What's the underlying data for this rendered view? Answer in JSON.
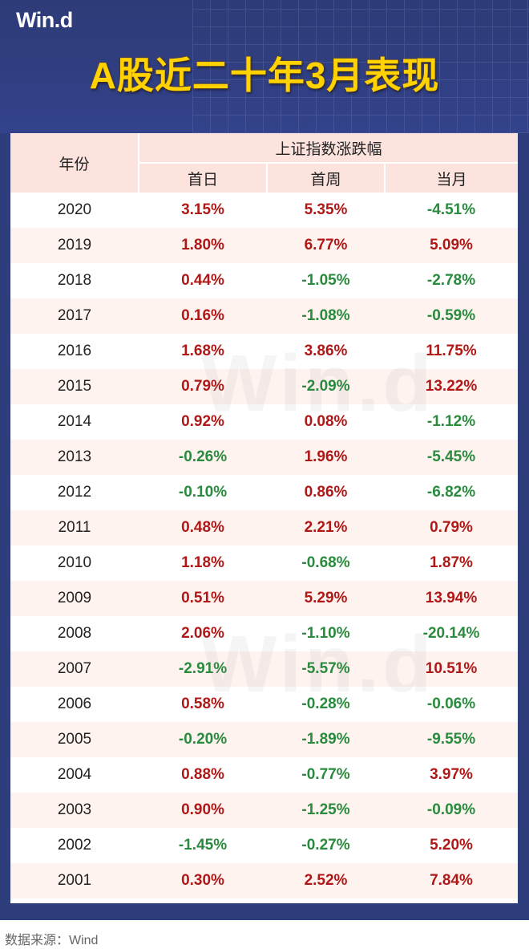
{
  "header": {
    "logo": "Win.d",
    "title": "A股近二十年3月表现"
  },
  "table": {
    "col_year": "年份",
    "group": "上证指数涨跌幅",
    "cols": [
      "首日",
      "首周",
      "当月"
    ],
    "rows": [
      {
        "year": "2020",
        "values": [
          "3.15%",
          "5.35%",
          "-4.51%"
        ]
      },
      {
        "year": "2019",
        "values": [
          "1.80%",
          "6.77%",
          "5.09%"
        ]
      },
      {
        "year": "2018",
        "values": [
          "0.44%",
          "-1.05%",
          "-2.78%"
        ]
      },
      {
        "year": "2017",
        "values": [
          "0.16%",
          "-1.08%",
          "-0.59%"
        ]
      },
      {
        "year": "2016",
        "values": [
          "1.68%",
          "3.86%",
          "11.75%"
        ]
      },
      {
        "year": "2015",
        "values": [
          "0.79%",
          "-2.09%",
          "13.22%"
        ]
      },
      {
        "year": "2014",
        "values": [
          "0.92%",
          "0.08%",
          "-1.12%"
        ]
      },
      {
        "year": "2013",
        "values": [
          "-0.26%",
          "1.96%",
          "-5.45%"
        ]
      },
      {
        "year": "2012",
        "values": [
          "-0.10%",
          "0.86%",
          "-6.82%"
        ]
      },
      {
        "year": "2011",
        "values": [
          "0.48%",
          "2.21%",
          "0.79%"
        ]
      },
      {
        "year": "2010",
        "values": [
          "1.18%",
          "-0.68%",
          "1.87%"
        ]
      },
      {
        "year": "2009",
        "values": [
          "0.51%",
          "5.29%",
          "13.94%"
        ]
      },
      {
        "year": "2008",
        "values": [
          "2.06%",
          "-1.10%",
          "-20.14%"
        ]
      },
      {
        "year": "2007",
        "values": [
          "-2.91%",
          "-5.57%",
          "10.51%"
        ]
      },
      {
        "year": "2006",
        "values": [
          "0.58%",
          "-0.28%",
          "-0.06%"
        ]
      },
      {
        "year": "2005",
        "values": [
          "-0.20%",
          "-1.89%",
          "-9.55%"
        ]
      },
      {
        "year": "2004",
        "values": [
          "0.88%",
          "-0.77%",
          "3.97%"
        ]
      },
      {
        "year": "2003",
        "values": [
          "0.90%",
          "-1.25%",
          "-0.09%"
        ]
      },
      {
        "year": "2002",
        "values": [
          "-1.45%",
          "-0.27%",
          "5.20%"
        ]
      },
      {
        "year": "2001",
        "values": [
          "0.30%",
          "2.52%",
          "7.84%"
        ]
      }
    ]
  },
  "watermark": "Win.d",
  "footer": {
    "source": "数据来源：Wind"
  },
  "colors": {
    "frame": "#2e3d7b",
    "title": "#ffd200",
    "positive": "#b01818",
    "negative": "#2a8a3e",
    "header_bg": "#fce3dd",
    "row_alt": "#fef3ef"
  }
}
